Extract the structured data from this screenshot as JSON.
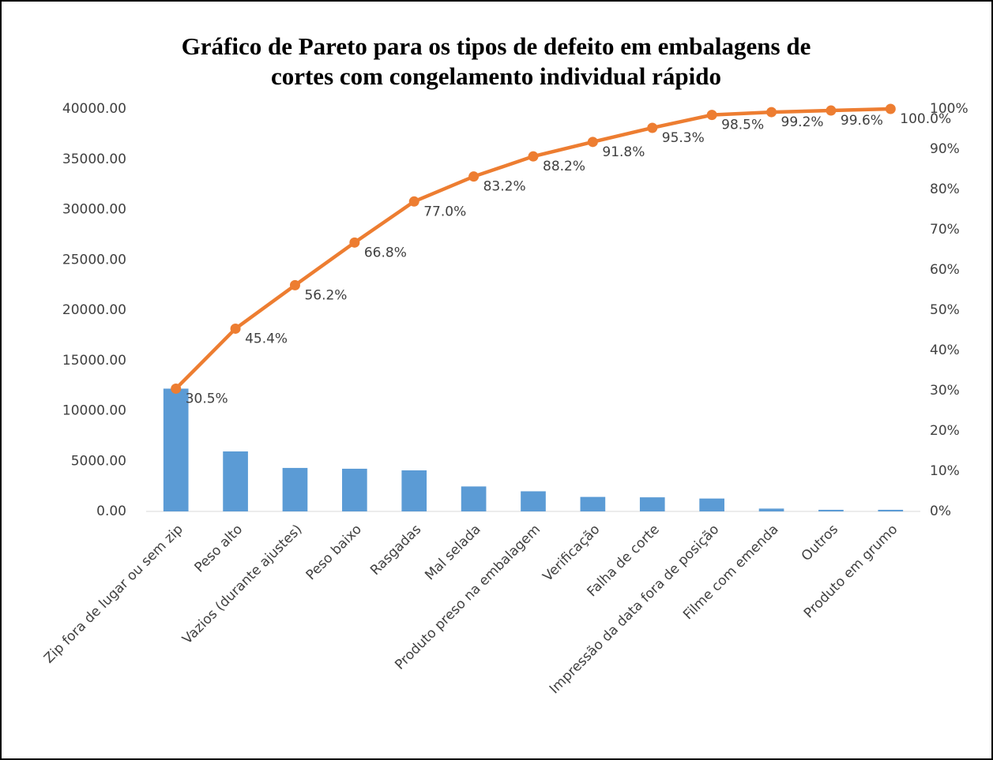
{
  "chart_data": {
    "type": "pareto",
    "title": [
      "Gráfico de Pareto para os tipos de defeito em embalagens de",
      "cortes com congelamento individual rápido"
    ],
    "categories": [
      "Zip fora de lugar ou sem zip",
      "Peso alto",
      "Vazios  (durante ajustes)",
      "Peso baixo",
      "Rasgadas",
      "Mal selada",
      "Produto preso na embalagem",
      "Verificação",
      "Falha de corte",
      "Impressão da data fora de posição",
      "Filme com emenda",
      "Outros",
      "Produto em grumo"
    ],
    "series": [
      {
        "type": "bar",
        "color": "#5b9bd5",
        "values": [
          12200,
          5960,
          4320,
          4240,
          4080,
          2480,
          2000,
          1440,
          1400,
          1280,
          280,
          160,
          160
        ]
      },
      {
        "type": "line",
        "axis": "y2",
        "color": "#ed7d31",
        "values": [
          30.5,
          45.4,
          56.2,
          66.8,
          77.0,
          83.2,
          88.2,
          91.8,
          95.3,
          98.5,
          99.2,
          99.6,
          100.0
        ],
        "value_labels": [
          "30.5%",
          "45.4%",
          "56.2%",
          "66.8%",
          "77.0%",
          "83.2%",
          "88.2%",
          "91.8%",
          "95.3%",
          "98.5%",
          "99.2%",
          "99.6%",
          "100.0%"
        ]
      }
    ],
    "ylim": [
      0,
      40000
    ],
    "yticks": [
      {
        "value": 0,
        "label": "0.00"
      },
      {
        "value": 5000,
        "label": "5000.00"
      },
      {
        "value": 10000,
        "label": "10000.00"
      },
      {
        "value": 15000,
        "label": "15000.00"
      },
      {
        "value": 20000,
        "label": "20000.00"
      },
      {
        "value": 25000,
        "label": "25000.00"
      },
      {
        "value": 30000,
        "label": "30000.00"
      },
      {
        "value": 35000,
        "label": "35000.00"
      },
      {
        "value": 40000,
        "label": "40000.00"
      }
    ],
    "y2lim": [
      0,
      100
    ],
    "y2ticks": [
      {
        "value": 0,
        "label": "0%"
      },
      {
        "value": 10,
        "label": "10%"
      },
      {
        "value": 20,
        "label": "20%"
      },
      {
        "value": 30,
        "label": "30%"
      },
      {
        "value": 40,
        "label": "40%"
      },
      {
        "value": 50,
        "label": "50%"
      },
      {
        "value": 60,
        "label": "60%"
      },
      {
        "value": 70,
        "label": "70%"
      },
      {
        "value": 80,
        "label": "80%"
      },
      {
        "value": 90,
        "label": "90%"
      },
      {
        "value": 100,
        "label": "100%"
      }
    ],
    "grid": false
  }
}
